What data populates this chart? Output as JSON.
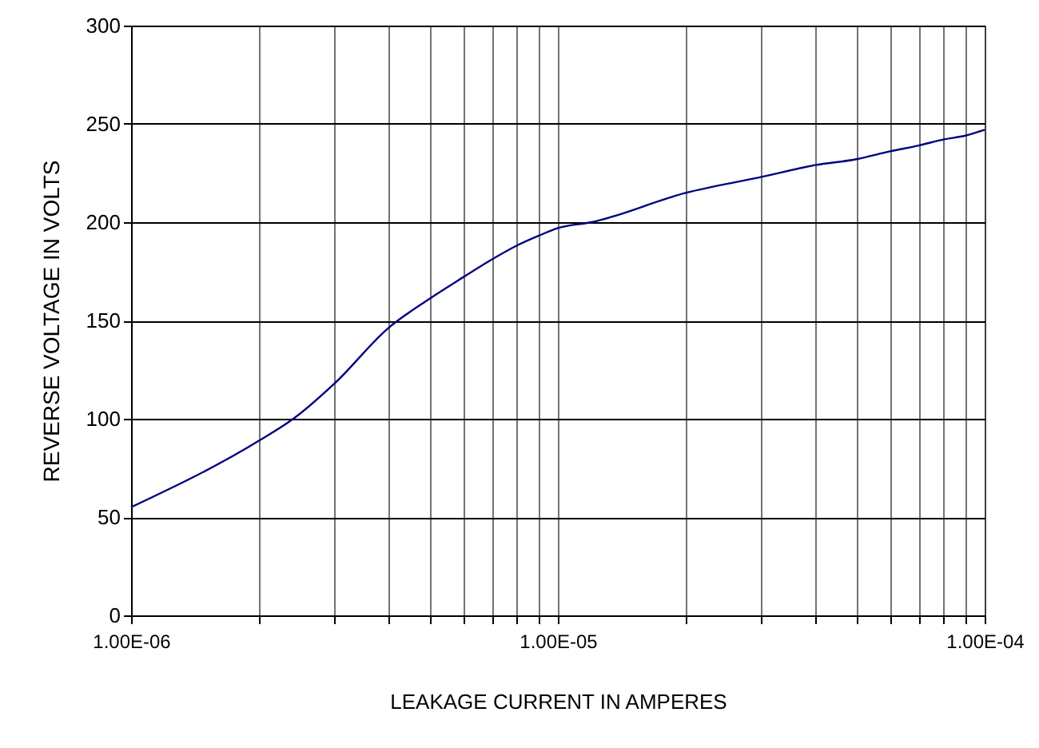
{
  "chart_data": {
    "type": "line",
    "xlabel": "LEAKAGE CURRENT IN AMPERES",
    "ylabel": "REVERSE VOLTAGE IN VOLTS",
    "x": [
      1e-06,
      2e-06,
      2.4e-06,
      3e-06,
      4e-06,
      5e-06,
      6e-06,
      7e-06,
      8e-06,
      9e-06,
      1e-05,
      1.2e-05,
      2e-05,
      3e-05,
      4e-05,
      5e-05,
      6e-05,
      7e-05,
      8e-05,
      9e-05,
      0.0001
    ],
    "series": [
      {
        "color": "#000080",
        "values": [
          55,
          89,
          100,
          118,
          146,
          161,
          172,
          181,
          188,
          193,
          197,
          200,
          215,
          223,
          229,
          232,
          236,
          239,
          242,
          244,
          247
        ]
      }
    ],
    "log": "x",
    "xlim": [
      1e-06,
      0.0001
    ],
    "ylim": [
      0,
      300
    ],
    "xticks": [
      {
        "value": 1e-06,
        "label": "1.00E-06"
      },
      {
        "value": 2e-06,
        "label": null
      },
      {
        "value": 3e-06,
        "label": null
      },
      {
        "value": 4e-06,
        "label": null
      },
      {
        "value": 5e-06,
        "label": null
      },
      {
        "value": 6e-06,
        "label": null
      },
      {
        "value": 7e-06,
        "label": null
      },
      {
        "value": 8e-06,
        "label": null
      },
      {
        "value": 9e-06,
        "label": null
      },
      {
        "value": 1e-05,
        "label": "1.00E-05"
      },
      {
        "value": 2e-05,
        "label": null
      },
      {
        "value": 3e-05,
        "label": null
      },
      {
        "value": 4e-05,
        "label": null
      },
      {
        "value": 5e-05,
        "label": null
      },
      {
        "value": 6e-05,
        "label": null
      },
      {
        "value": 7e-05,
        "label": null
      },
      {
        "value": 8e-05,
        "label": null
      },
      {
        "value": 9e-05,
        "label": null
      },
      {
        "value": 0.0001,
        "label": "1.00E-04"
      }
    ],
    "yticks": [
      0,
      50,
      100,
      150,
      200,
      250,
      300
    ],
    "grid": true,
    "line_style": "solid",
    "marker": "none"
  }
}
